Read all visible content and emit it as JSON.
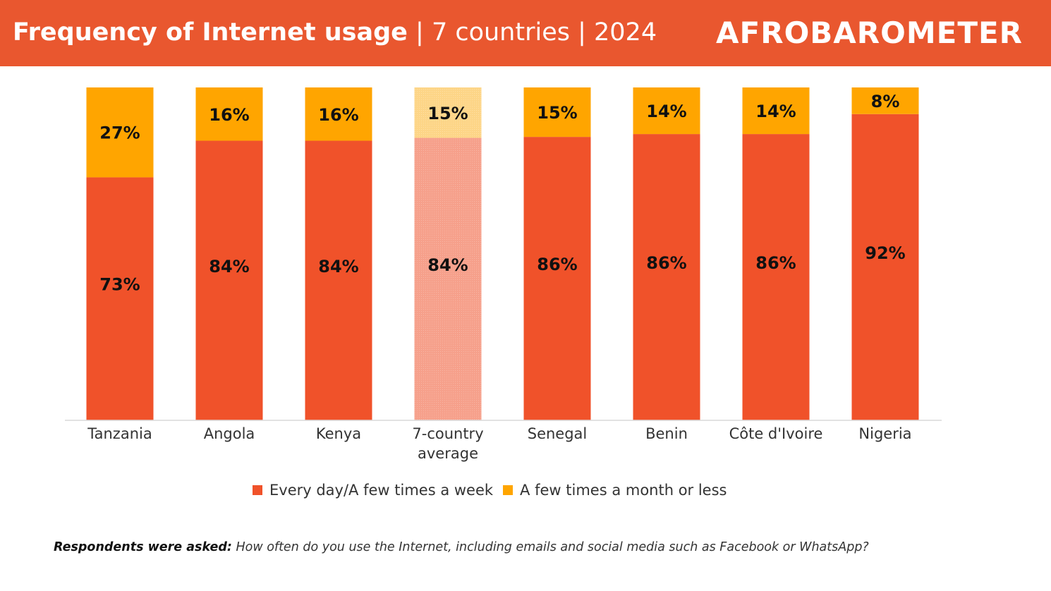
{
  "header": {
    "title_bold": "Frequency of Internet usage",
    "title_rest": " | 7 countries | 2024",
    "logo_text": "AFROBAROMETER"
  },
  "colors": {
    "header": "#E9572F",
    "series1": "#F0522A",
    "series2": "#FFA500",
    "series1_highlight": "#F6A08B",
    "series2_highlight": "#FDD587"
  },
  "chart_data": {
    "type": "bar",
    "stacked": true,
    "categories": [
      "Tanzania",
      "Angola",
      "Kenya",
      "7-country average",
      "Senegal",
      "Benin",
      "Côte d'Ivoire",
      "Nigeria"
    ],
    "highlighted_category": "7-country average",
    "series": [
      {
        "name": "Every day/A few times a week",
        "values": [
          73,
          84,
          84,
          84,
          86,
          86,
          86,
          92
        ]
      },
      {
        "name": "A few times a month or less",
        "values": [
          27,
          16,
          16,
          15,
          15,
          14,
          14,
          8
        ]
      }
    ],
    "value_suffix": "%",
    "legend_position": "bottom",
    "grid": false
  },
  "footnote": {
    "label": "Respondents were asked:",
    "text": " How often do you use the Internet, including emails and social media such as Facebook or WhatsApp?"
  }
}
